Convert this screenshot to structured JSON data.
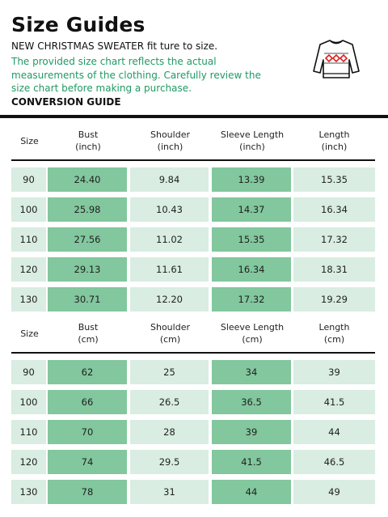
{
  "header": {
    "title": "Size Guides",
    "subtitle": "NEW CHRISTMAS SWEATER fit ture to size.",
    "note": "The provided size chart reflects the actual measurements of the clothing. Carefully review the size chart before making a purchase.",
    "conversion_label": "CONVERSION GUIDE"
  },
  "colors": {
    "accent_text": "#1f9a63",
    "cell_dark": "#82c79d",
    "cell_light": "#d9ede2"
  },
  "icon": "christmas-sweater-icon",
  "tables": [
    {
      "columns": [
        {
          "line1": "Size",
          "line2": ""
        },
        {
          "line1": "Bust",
          "line2": "(inch)"
        },
        {
          "line1": "Shoulder",
          "line2": "(inch)"
        },
        {
          "line1": "Sleeve Length",
          "line2": "(inch)"
        },
        {
          "line1": "Length",
          "line2": "(inch)"
        }
      ],
      "rows": [
        [
          "90",
          "24.40",
          "9.84",
          "13.39",
          "15.35"
        ],
        [
          "100",
          "25.98",
          "10.43",
          "14.37",
          "16.34"
        ],
        [
          "110",
          "27.56",
          "11.02",
          "15.35",
          "17.32"
        ],
        [
          "120",
          "29.13",
          "11.61",
          "16.34",
          "18.31"
        ],
        [
          "130",
          "30.71",
          "12.20",
          "17.32",
          "19.29"
        ]
      ]
    },
    {
      "columns": [
        {
          "line1": "Size",
          "line2": ""
        },
        {
          "line1": "Bust",
          "line2": "(cm)"
        },
        {
          "line1": "Shoulder",
          "line2": "(cm)"
        },
        {
          "line1": "Sleeve Length",
          "line2": "(cm)"
        },
        {
          "line1": "Length",
          "line2": "(cm)"
        }
      ],
      "rows": [
        [
          "90",
          "62",
          "25",
          "34",
          "39"
        ],
        [
          "100",
          "66",
          "26.5",
          "36.5",
          "41.5"
        ],
        [
          "110",
          "70",
          "28",
          "39",
          "44"
        ],
        [
          "120",
          "74",
          "29.5",
          "41.5",
          "46.5"
        ],
        [
          "130",
          "78",
          "31",
          "44",
          "49"
        ]
      ]
    }
  ]
}
